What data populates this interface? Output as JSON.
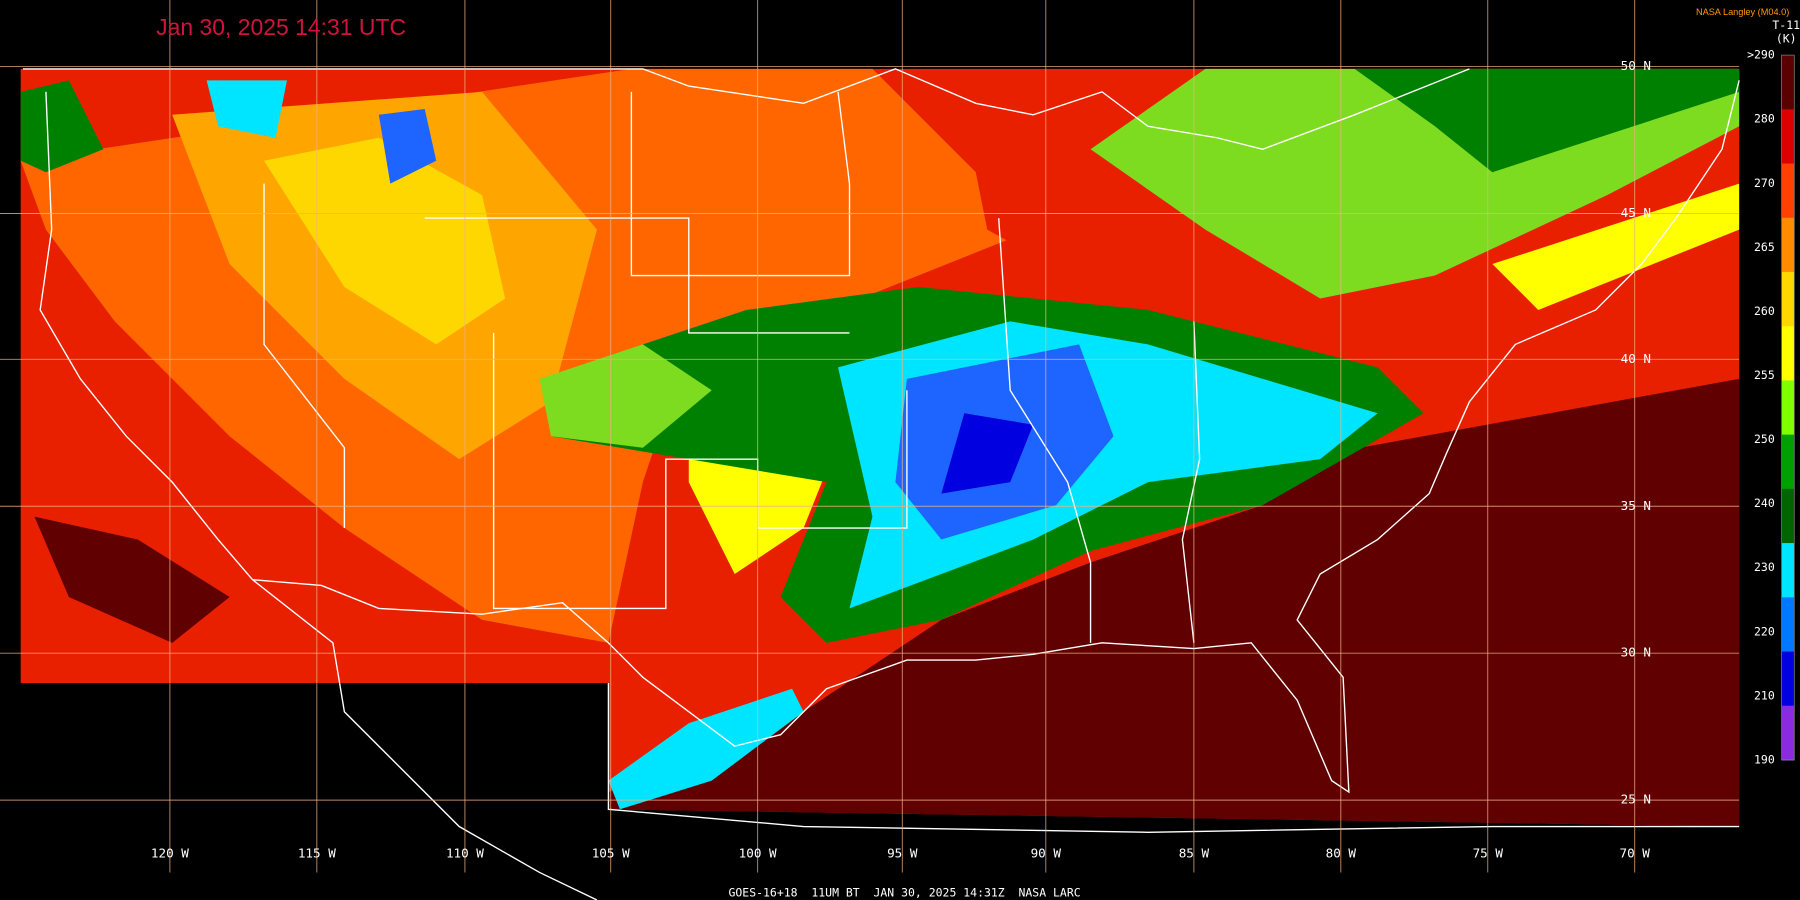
{
  "header": {
    "timestamp": "Jan 30, 2025 14:31 UTC",
    "credit": "NASA Langley (M04.0)"
  },
  "legend": {
    "title": "T-11",
    "unit": "(K)",
    "labels": [
      ">290",
      "280",
      "270",
      "265",
      "260",
      "255",
      "250",
      "240",
      "230",
      "220",
      "210",
      "190"
    ],
    "colors": [
      "#5a0000",
      "#dc0000",
      "#ff4000",
      "#ff8c00",
      "#ffd700",
      "#ffff00",
      "#7fff00",
      "#00a000",
      "#006400",
      "#00e5ff",
      "#0078ff",
      "#0000e0",
      "#8a2be2"
    ]
  },
  "grid": {
    "latitude_labels": [
      "50 N",
      "45 N",
      "40 N",
      "35 N",
      "30 N",
      "25 N"
    ],
    "longitude_labels": [
      "120 W",
      "115 W",
      "110 W",
      "105 W",
      "100 W",
      "95 W",
      "90 W",
      "85 W",
      "80 W",
      "75 W",
      "70 W"
    ]
  },
  "footer": "GOES-16+18  11UM BT  JAN 30, 2025 14:31Z  NASA LARC"
}
